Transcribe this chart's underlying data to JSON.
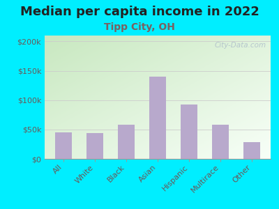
{
  "title": "Median per capita income in 2022",
  "subtitle": "Tipp City, OH",
  "categories": [
    "All",
    "White",
    "Black",
    "Asian",
    "Hispanic",
    "Multirace",
    "Other"
  ],
  "values": [
    45000,
    44000,
    58000,
    140000,
    92000,
    58000,
    28000
  ],
  "bar_color": "#b8a9cc",
  "background_outer": "#00eeff",
  "background_plot_topleft": "#c8e8c0",
  "background_plot_bottomright": "#f8fff8",
  "title_color": "#222222",
  "subtitle_color": "#7a6060",
  "tick_color": "#6a5858",
  "grid_color": "#cccccc",
  "ylim": [
    0,
    210000
  ],
  "yticks": [
    0,
    50000,
    100000,
    150000,
    200000
  ],
  "ytick_labels": [
    "$0",
    "$50k",
    "$100k",
    "$150k",
    "$200k"
  ],
  "title_fontsize": 13,
  "subtitle_fontsize": 10,
  "tick_fontsize": 8,
  "watermark_text": "City-Data.com"
}
